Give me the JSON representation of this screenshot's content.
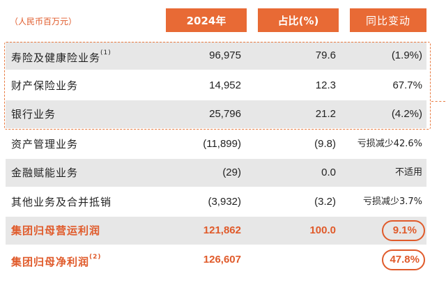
{
  "unit_note": "（人民币百万元）",
  "headers": {
    "col1": "2024年",
    "col2": "占比(%)",
    "col3": "同比变动"
  },
  "rows": [
    {
      "label": "寿险及健康险业务",
      "sup": "(1)",
      "v2024": "96,975",
      "share": "79.6",
      "yoy": "(1.9%)"
    },
    {
      "label": "财产保险业务",
      "sup": "",
      "v2024": "14,952",
      "share": "12.3",
      "yoy": "67.7%"
    },
    {
      "label": "银行业务",
      "sup": "",
      "v2024": "25,796",
      "share": "21.2",
      "yoy": "(4.2%)"
    },
    {
      "label": "资产管理业务",
      "sup": "",
      "v2024": "(11,899)",
      "share": "(9.8)",
      "yoy": "亏损减少42.6%"
    },
    {
      "label": "金融赋能业务",
      "sup": "",
      "v2024": "(29)",
      "share": "0.0",
      "yoy": "不适用"
    },
    {
      "label": "其他业务及合并抵销",
      "sup": "",
      "v2024": "(3,932)",
      "share": "(3.2)",
      "yoy": "亏损减少3.7%"
    },
    {
      "label": "集团归母营运利润",
      "sup": "",
      "v2024": "121,862",
      "share": "100.0",
      "yoy": "9.1%"
    },
    {
      "label": "集团归母净利润",
      "sup": "(2)",
      "v2024": "126,607",
      "share": "",
      "yoy": "47.8%"
    }
  ],
  "colors": {
    "accent": "#e86a35",
    "highlight_text": "#e05a2a",
    "row_shade": "#e7e7e7"
  }
}
